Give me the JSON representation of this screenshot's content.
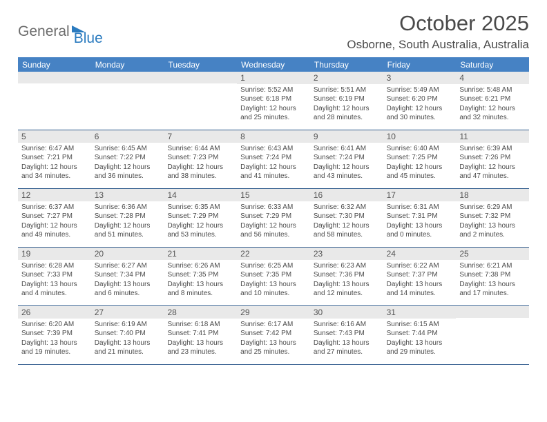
{
  "logo": {
    "word1": "General",
    "word2": "Blue"
  },
  "title": "October 2025",
  "subtitle": "Osborne, South Australia, Australia",
  "dayHeaders": [
    "Sunday",
    "Monday",
    "Tuesday",
    "Wednesday",
    "Thursday",
    "Friday",
    "Saturday"
  ],
  "colors": {
    "headerBg": "#4682c4",
    "headerText": "#ffffff",
    "dayNumBg": "#e9e9e9",
    "ruleColor": "#2f5a8c",
    "brandBlue": "#2b7bbf",
    "textColor": "#4a4a4a",
    "background": "#ffffff"
  },
  "typography": {
    "title_fontsize": 31,
    "subtitle_fontsize": 17,
    "dayheader_fontsize": 12,
    "daynum_fontsize": 12,
    "detail_fontsize": 10
  },
  "weeks": [
    [
      {
        "n": "",
        "sunrise": "",
        "sunset": "",
        "daylight": ""
      },
      {
        "n": "",
        "sunrise": "",
        "sunset": "",
        "daylight": ""
      },
      {
        "n": "",
        "sunrise": "",
        "sunset": "",
        "daylight": ""
      },
      {
        "n": "1",
        "sunrise": "5:52 AM",
        "sunset": "6:18 PM",
        "daylight": "12 hours and 25 minutes."
      },
      {
        "n": "2",
        "sunrise": "5:51 AM",
        "sunset": "6:19 PM",
        "daylight": "12 hours and 28 minutes."
      },
      {
        "n": "3",
        "sunrise": "5:49 AM",
        "sunset": "6:20 PM",
        "daylight": "12 hours and 30 minutes."
      },
      {
        "n": "4",
        "sunrise": "5:48 AM",
        "sunset": "6:21 PM",
        "daylight": "12 hours and 32 minutes."
      }
    ],
    [
      {
        "n": "5",
        "sunrise": "6:47 AM",
        "sunset": "7:21 PM",
        "daylight": "12 hours and 34 minutes."
      },
      {
        "n": "6",
        "sunrise": "6:45 AM",
        "sunset": "7:22 PM",
        "daylight": "12 hours and 36 minutes."
      },
      {
        "n": "7",
        "sunrise": "6:44 AM",
        "sunset": "7:23 PM",
        "daylight": "12 hours and 38 minutes."
      },
      {
        "n": "8",
        "sunrise": "6:43 AM",
        "sunset": "7:24 PM",
        "daylight": "12 hours and 41 minutes."
      },
      {
        "n": "9",
        "sunrise": "6:41 AM",
        "sunset": "7:24 PM",
        "daylight": "12 hours and 43 minutes."
      },
      {
        "n": "10",
        "sunrise": "6:40 AM",
        "sunset": "7:25 PM",
        "daylight": "12 hours and 45 minutes."
      },
      {
        "n": "11",
        "sunrise": "6:39 AM",
        "sunset": "7:26 PM",
        "daylight": "12 hours and 47 minutes."
      }
    ],
    [
      {
        "n": "12",
        "sunrise": "6:37 AM",
        "sunset": "7:27 PM",
        "daylight": "12 hours and 49 minutes."
      },
      {
        "n": "13",
        "sunrise": "6:36 AM",
        "sunset": "7:28 PM",
        "daylight": "12 hours and 51 minutes."
      },
      {
        "n": "14",
        "sunrise": "6:35 AM",
        "sunset": "7:29 PM",
        "daylight": "12 hours and 53 minutes."
      },
      {
        "n": "15",
        "sunrise": "6:33 AM",
        "sunset": "7:29 PM",
        "daylight": "12 hours and 56 minutes."
      },
      {
        "n": "16",
        "sunrise": "6:32 AM",
        "sunset": "7:30 PM",
        "daylight": "12 hours and 58 minutes."
      },
      {
        "n": "17",
        "sunrise": "6:31 AM",
        "sunset": "7:31 PM",
        "daylight": "13 hours and 0 minutes."
      },
      {
        "n": "18",
        "sunrise": "6:29 AM",
        "sunset": "7:32 PM",
        "daylight": "13 hours and 2 minutes."
      }
    ],
    [
      {
        "n": "19",
        "sunrise": "6:28 AM",
        "sunset": "7:33 PM",
        "daylight": "13 hours and 4 minutes."
      },
      {
        "n": "20",
        "sunrise": "6:27 AM",
        "sunset": "7:34 PM",
        "daylight": "13 hours and 6 minutes."
      },
      {
        "n": "21",
        "sunrise": "6:26 AM",
        "sunset": "7:35 PM",
        "daylight": "13 hours and 8 minutes."
      },
      {
        "n": "22",
        "sunrise": "6:25 AM",
        "sunset": "7:35 PM",
        "daylight": "13 hours and 10 minutes."
      },
      {
        "n": "23",
        "sunrise": "6:23 AM",
        "sunset": "7:36 PM",
        "daylight": "13 hours and 12 minutes."
      },
      {
        "n": "24",
        "sunrise": "6:22 AM",
        "sunset": "7:37 PM",
        "daylight": "13 hours and 14 minutes."
      },
      {
        "n": "25",
        "sunrise": "6:21 AM",
        "sunset": "7:38 PM",
        "daylight": "13 hours and 17 minutes."
      }
    ],
    [
      {
        "n": "26",
        "sunrise": "6:20 AM",
        "sunset": "7:39 PM",
        "daylight": "13 hours and 19 minutes."
      },
      {
        "n": "27",
        "sunrise": "6:19 AM",
        "sunset": "7:40 PM",
        "daylight": "13 hours and 21 minutes."
      },
      {
        "n": "28",
        "sunrise": "6:18 AM",
        "sunset": "7:41 PM",
        "daylight": "13 hours and 23 minutes."
      },
      {
        "n": "29",
        "sunrise": "6:17 AM",
        "sunset": "7:42 PM",
        "daylight": "13 hours and 25 minutes."
      },
      {
        "n": "30",
        "sunrise": "6:16 AM",
        "sunset": "7:43 PM",
        "daylight": "13 hours and 27 minutes."
      },
      {
        "n": "31",
        "sunrise": "6:15 AM",
        "sunset": "7:44 PM",
        "daylight": "13 hours and 29 minutes."
      },
      {
        "n": "",
        "sunrise": "",
        "sunset": "",
        "daylight": ""
      }
    ]
  ],
  "labels": {
    "sunrise": "Sunrise: ",
    "sunset": "Sunset: ",
    "daylight": "Daylight: "
  }
}
